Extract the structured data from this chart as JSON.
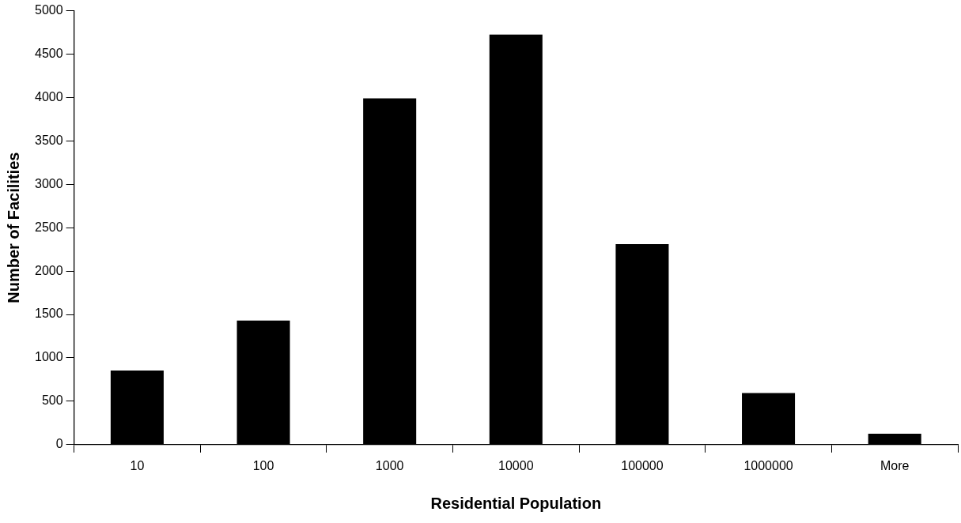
{
  "chart_data": {
    "type": "bar",
    "xlabel": "Residential Population",
    "ylabel": "Number of Facilities",
    "categories": [
      "10",
      "100",
      "1000",
      "10000",
      "100000",
      "1000000",
      "More"
    ],
    "values": [
      855,
      1430,
      3990,
      4725,
      2310,
      595,
      125
    ],
    "color": "#000000",
    "ylim": [
      0,
      5000
    ],
    "yticks": [
      0,
      500,
      1000,
      1500,
      2000,
      2500,
      3000,
      3500,
      4000,
      4500,
      5000
    ],
    "grid": false,
    "legend": false
  }
}
